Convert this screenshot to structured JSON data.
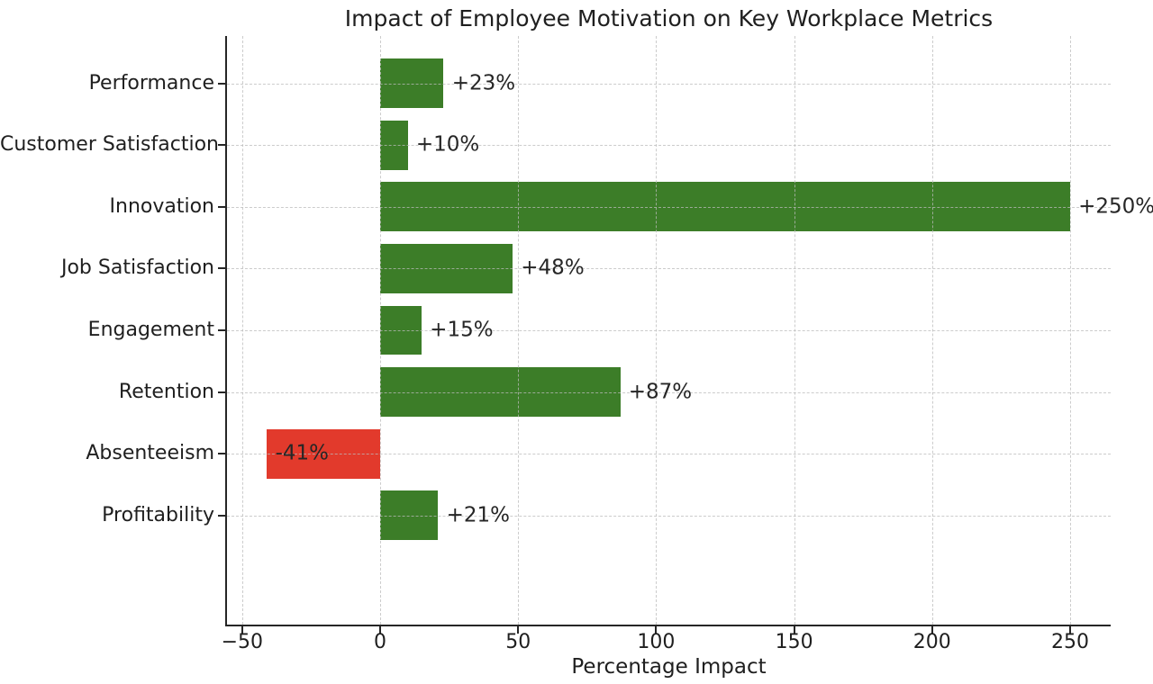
{
  "chart_data": {
    "type": "bar",
    "orientation": "horizontal",
    "title": "Impact of Employee Motivation on Key Workplace Metrics",
    "xlabel": "Percentage Impact",
    "categories": [
      "Performance",
      "Customer Satisfaction",
      "Innovation",
      "Job Satisfaction",
      "Engagement",
      "Retention",
      "Absenteeism",
      "Profitability"
    ],
    "values": [
      23,
      10,
      250,
      48,
      15,
      87,
      -41,
      21
    ],
    "value_labels": [
      "+23%",
      "+10%",
      "+250%",
      "+48%",
      "+15%",
      "+87%",
      "-41%",
      "+21%"
    ],
    "xticks": [
      -50,
      0,
      50,
      100,
      150,
      200,
      250
    ],
    "xtick_labels": [
      "−50",
      "0",
      "50",
      "100",
      "150",
      "200",
      "250"
    ],
    "xlim": [
      -55.5,
      264.7
    ],
    "grid": true,
    "grid_style": "dashed",
    "legend": "none",
    "colors": {
      "positive_bar": "#3c7d28",
      "negative_bar": "#e23a2c",
      "grid": "#bbbbbb",
      "text": "#1f1f1f",
      "spine": "#262626",
      "background": "#ffffff"
    }
  }
}
